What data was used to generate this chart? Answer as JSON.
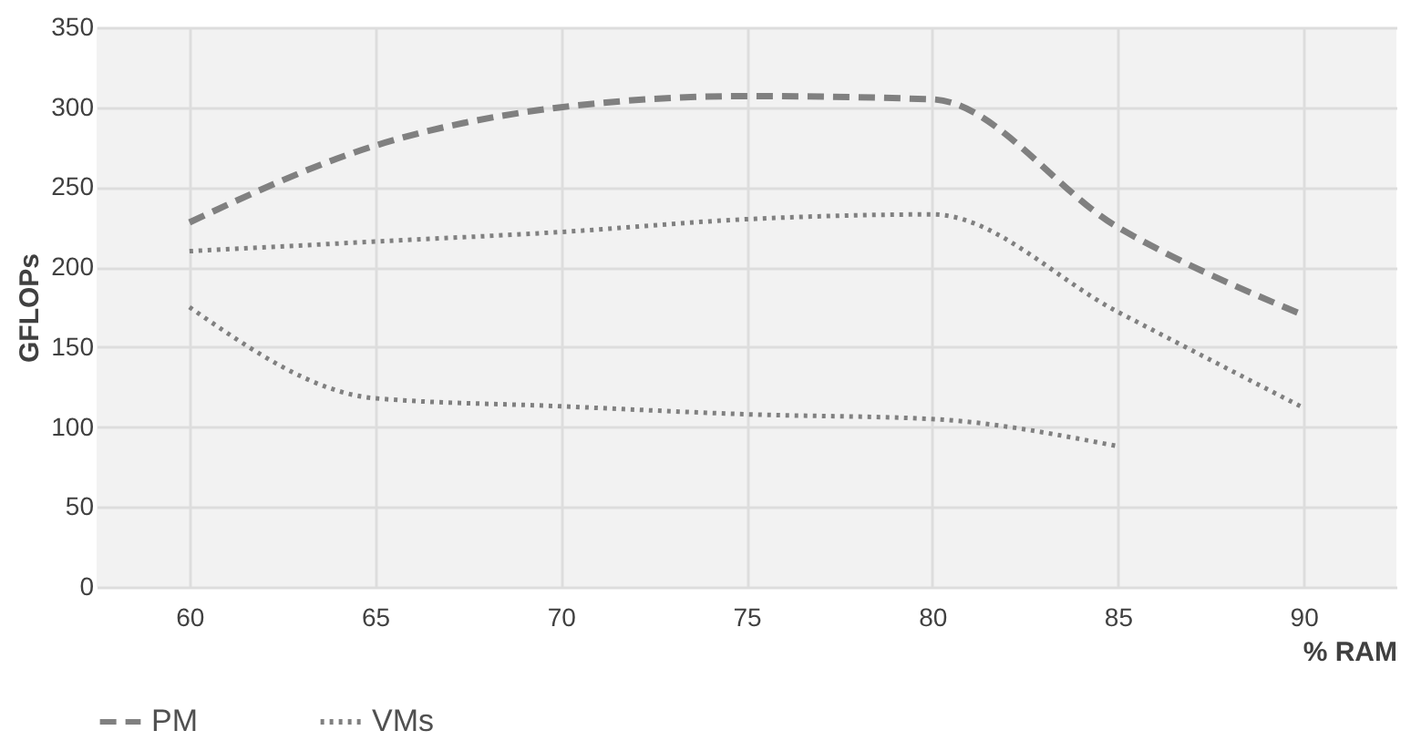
{
  "chart_data": {
    "type": "line",
    "xlabel": "% RAM",
    "ylabel": "GFLOPs",
    "categories": [
      "60",
      "65",
      "70",
      "75",
      "80",
      "85",
      "90"
    ],
    "series": [
      {
        "name": "PM",
        "color": "#808080",
        "line_style": "dashed",
        "values": [
          228,
          276,
          300,
          307,
          305,
          225,
          170
        ]
      },
      {
        "name": "VMs",
        "color": "#808080",
        "line_style": "dotted",
        "values": [
          210,
          216,
          222,
          230,
          233,
          172,
          112
        ]
      },
      {
        "color": "#808080",
        "line_style": "dotted",
        "values": [
          175,
          118,
          113,
          108,
          105,
          88,
          null
        ]
      }
    ],
    "ylim": [
      0,
      350
    ],
    "yticks": [
      0,
      50,
      100,
      150,
      200,
      250,
      300,
      350
    ],
    "grid": true,
    "legend": "bottom",
    "marker": "none"
  }
}
